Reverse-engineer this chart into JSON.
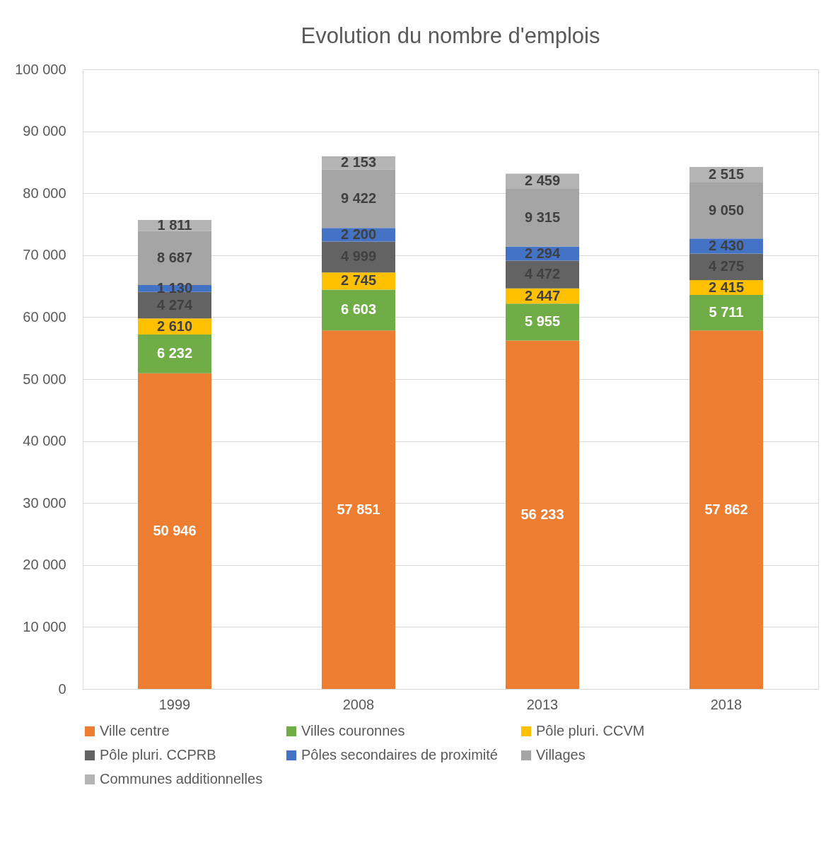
{
  "chart_data": {
    "type": "bar",
    "title": "Evolution du nombre d'emplois",
    "stacked": true,
    "categories": [
      "1999",
      "2008",
      "2013",
      "2018"
    ],
    "series": [
      {
        "name": "Ville centre",
        "color": "#ed7d31",
        "values": [
          50946,
          57851,
          56233,
          57862
        ],
        "value_labels": [
          "50 946",
          "57 851",
          "56 233",
          "57 862"
        ]
      },
      {
        "name": "Villes couronnes",
        "color": "#70ad47",
        "values": [
          6232,
          6603,
          5955,
          5711
        ],
        "value_labels": [
          "6 232",
          "6 603",
          "5 955",
          "5 711"
        ]
      },
      {
        "name": "Pôle pluri. CCVM",
        "color": "#ffc000",
        "values": [
          2610,
          2745,
          2447,
          2415
        ],
        "value_labels": [
          "2 610",
          "2 745",
          "2 447",
          "2 415"
        ]
      },
      {
        "name": "Pôle pluri. CCPRB",
        "color": "#636363",
        "values": [
          4274,
          4999,
          4472,
          4275
        ],
        "value_labels": [
          "4 274",
          "4 999",
          "4 472",
          "4 275"
        ]
      },
      {
        "name": "Pôles secondaires de proximité",
        "color": "#4472c4",
        "values": [
          1130,
          2200,
          2294,
          2430
        ],
        "value_labels": [
          "1 130",
          "2 200",
          "2 294",
          "2 430"
        ]
      },
      {
        "name": "Villages",
        "color": "#a5a5a5",
        "values": [
          8687,
          9422,
          9315,
          9050
        ],
        "value_labels": [
          "8 687",
          "9 422",
          "9 315",
          "9 050"
        ]
      },
      {
        "name": "Communes additionnelles",
        "color": "#b4b4b4",
        "values": [
          1811,
          2153,
          2459,
          2515
        ],
        "value_labels": [
          "1 811",
          "2 153",
          "2 459",
          "2 515"
        ]
      }
    ],
    "ylim": [
      0,
      100000
    ],
    "yticks": [
      {
        "value": 0,
        "label": "0"
      },
      {
        "value": 10000,
        "label": "10 000"
      },
      {
        "value": 20000,
        "label": "20 000"
      },
      {
        "value": 30000,
        "label": "30 000"
      },
      {
        "value": 40000,
        "label": "40 000"
      },
      {
        "value": 50000,
        "label": "50 000"
      },
      {
        "value": 60000,
        "label": "60 000"
      },
      {
        "value": 70000,
        "label": "70 000"
      },
      {
        "value": 80000,
        "label": "80 000"
      },
      {
        "value": 90000,
        "label": "90 000"
      },
      {
        "value": 100000,
        "label": "100 000"
      }
    ],
    "grid": "y",
    "legend": "bottom"
  }
}
